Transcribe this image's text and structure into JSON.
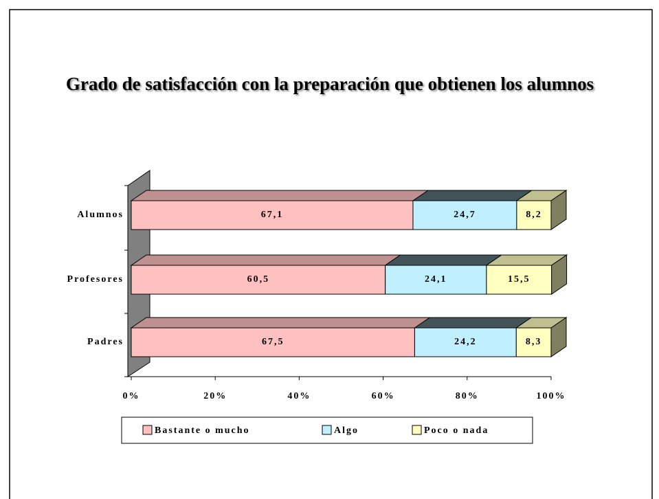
{
  "chart_data": {
    "type": "stacked-bar-3d",
    "title": "Grado de satisfacción con la preparación que obtienen los alumnos",
    "categories": [
      "Alumnos",
      "Profesores",
      "Padres"
    ],
    "series": [
      {
        "name": "Bastante o mucho",
        "color": "#ffc0c0",
        "values": [
          67.1,
          60.5,
          67.5
        ],
        "value_labels": [
          "67,1",
          "60,5",
          "67,5"
        ]
      },
      {
        "name": "Algo",
        "color": "#c0f0ff",
        "values": [
          24.7,
          24.1,
          24.2
        ],
        "value_labels": [
          "24,7",
          "24,1",
          "24,2"
        ]
      },
      {
        "name": "Poco o nada",
        "color": "#ffffc0",
        "values": [
          8.2,
          15.5,
          8.3
        ],
        "value_labels": [
          "8,2",
          "15,5",
          "8,3"
        ]
      }
    ],
    "xlim": [
      0,
      100
    ],
    "xticks": [
      {
        "value": 0,
        "label": "0%"
      },
      {
        "value": 20,
        "label": "20%"
      },
      {
        "value": 40,
        "label": "40%"
      },
      {
        "value": 60,
        "label": "60%"
      },
      {
        "value": 80,
        "label": "80%"
      },
      {
        "value": 100,
        "label": "100%"
      }
    ],
    "legend": "bottom"
  }
}
